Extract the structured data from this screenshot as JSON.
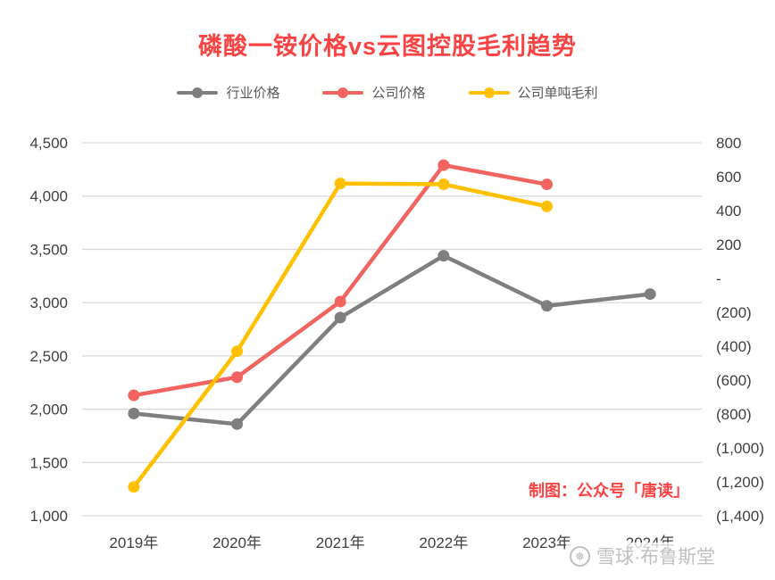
{
  "annotation": {
    "text": "制图：公众号「唐读」"
  },
  "watermark": {
    "icon": "xueqiu-logo",
    "text": "雪球·布鲁斯堂"
  },
  "colors": {
    "title": "#FA4343",
    "annotation": "#FA4343",
    "grid": "#D9D9D9",
    "axis_text": "#404040",
    "watermark": "#C0C0C0"
  },
  "chart_data": {
    "type": "line",
    "title": "磷酸一铵价格vs云图控股毛利趋势",
    "categories": [
      "2019年",
      "2020年",
      "2021年",
      "2022年",
      "2023年",
      "2024年"
    ],
    "series": [
      {
        "name": "行业价格",
        "axis": "left",
        "color": "#7F7F7F",
        "values": [
          1960,
          1860,
          2860,
          3440,
          2970,
          3080
        ]
      },
      {
        "name": "公司价格",
        "axis": "left",
        "color": "#F1645F",
        "values": [
          2130,
          2300,
          3010,
          4290,
          4110,
          null
        ]
      },
      {
        "name": "公司单吨毛利",
        "axis": "right",
        "color": "#FFC000",
        "values": [
          -1230,
          -430,
          560,
          555,
          425,
          null
        ]
      }
    ],
    "left_axis": {
      "min": 1000,
      "max": 4500,
      "tick_labels": [
        "4,500",
        "4,000",
        "3,500",
        "3,000",
        "2,500",
        "2,000",
        "1,500",
        "1,000"
      ]
    },
    "right_axis": {
      "min": -1400,
      "max": 800,
      "tick_labels": [
        "800",
        "600",
        "400",
        "200",
        "-",
        "(200)",
        "(400)",
        "(600)",
        "(800)",
        "(1,000)",
        "(1,200)",
        "(1,400)"
      ]
    },
    "grid": "horizontal",
    "legend_position": "top"
  }
}
